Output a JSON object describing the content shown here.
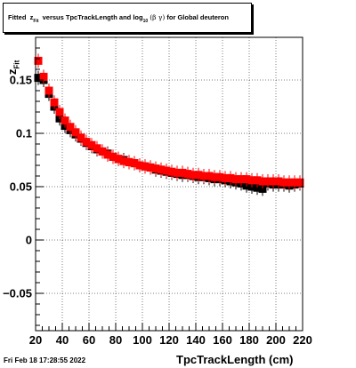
{
  "title": {
    "prefix": "Fitted",
    "z": "z",
    "z_sub": "Fit",
    "middle": "versus TpcTrackLength and log",
    "log_sub": "10",
    "greek": "(β γ)",
    "suffix": "for Global deuteron"
  },
  "timestamp": "Fri Feb 18 17:28:55 2022",
  "chart_data": {
    "type": "scatter",
    "xlabel": "TpcTrackLength (cm)",
    "ylabel": "z",
    "ylabel_sub": "Fit",
    "xlim": [
      20,
      220
    ],
    "ylim": [
      -0.085,
      0.19
    ],
    "xticks": [
      20,
      40,
      60,
      80,
      100,
      120,
      140,
      160,
      180,
      200,
      220
    ],
    "xtick_labels": [
      "20",
      "40",
      "60",
      "80",
      "100",
      "120",
      "140",
      "160",
      "180",
      "200",
      "220"
    ],
    "yticks": [
      -0.05,
      0,
      0.05,
      0.1,
      0.15
    ],
    "ytick_labels": [
      "−0.05",
      "0",
      "0.05",
      "0.1",
      "0.15"
    ],
    "grid": true,
    "series": [
      {
        "color": "#000000",
        "marker": "square",
        "points": [
          [
            22,
            0.152
          ],
          [
            26,
            0.15
          ],
          [
            30,
            0.137
          ],
          [
            34,
            0.125
          ],
          [
            38,
            0.114
          ],
          [
            42,
            0.107
          ],
          [
            46,
            0.103
          ],
          [
            50,
            0.099
          ],
          [
            54,
            0.095
          ],
          [
            58,
            0.091
          ],
          [
            62,
            0.088
          ],
          [
            66,
            0.085
          ],
          [
            70,
            0.083
          ],
          [
            74,
            0.081
          ],
          [
            78,
            0.078
          ],
          [
            82,
            0.076
          ],
          [
            86,
            0.075
          ],
          [
            90,
            0.073
          ],
          [
            94,
            0.072
          ],
          [
            98,
            0.07
          ],
          [
            102,
            0.069
          ],
          [
            106,
            0.068
          ],
          [
            110,
            0.066
          ],
          [
            114,
            0.065
          ],
          [
            118,
            0.064
          ],
          [
            122,
            0.063
          ],
          [
            126,
            0.062
          ],
          [
            130,
            0.061
          ],
          [
            134,
            0.061
          ],
          [
            138,
            0.06
          ],
          [
            142,
            0.059
          ],
          [
            146,
            0.059
          ],
          [
            150,
            0.058
          ],
          [
            154,
            0.057
          ],
          [
            158,
            0.057
          ],
          [
            162,
            0.056
          ],
          [
            166,
            0.055
          ],
          [
            170,
            0.054
          ],
          [
            174,
            0.053
          ],
          [
            178,
            0.051
          ],
          [
            182,
            0.05
          ],
          [
            186,
            0.049
          ],
          [
            190,
            0.048
          ],
          [
            194,
            0.053
          ],
          [
            198,
            0.052
          ],
          [
            202,
            0.052
          ],
          [
            206,
            0.052
          ],
          [
            210,
            0.051
          ],
          [
            214,
            0.052
          ],
          [
            218,
            0.053
          ]
        ]
      },
      {
        "color": "#ff0000",
        "marker": "square",
        "points": [
          [
            22,
            0.168
          ],
          [
            26,
            0.153
          ],
          [
            30,
            0.14
          ],
          [
            34,
            0.129
          ],
          [
            38,
            0.12
          ],
          [
            42,
            0.112
          ],
          [
            46,
            0.106
          ],
          [
            50,
            0.101
          ],
          [
            54,
            0.096
          ],
          [
            58,
            0.092
          ],
          [
            62,
            0.089
          ],
          [
            66,
            0.086
          ],
          [
            70,
            0.083
          ],
          [
            74,
            0.08
          ],
          [
            78,
            0.078
          ],
          [
            82,
            0.076
          ],
          [
            86,
            0.074
          ],
          [
            90,
            0.073
          ],
          [
            94,
            0.072
          ],
          [
            98,
            0.07
          ],
          [
            102,
            0.069
          ],
          [
            106,
            0.068
          ],
          [
            110,
            0.067
          ],
          [
            114,
            0.066
          ],
          [
            118,
            0.065
          ],
          [
            122,
            0.064
          ],
          [
            126,
            0.063
          ],
          [
            130,
            0.063
          ],
          [
            134,
            0.062
          ],
          [
            138,
            0.061
          ],
          [
            142,
            0.061
          ],
          [
            146,
            0.06
          ],
          [
            150,
            0.06
          ],
          [
            154,
            0.059
          ],
          [
            158,
            0.059
          ],
          [
            162,
            0.058
          ],
          [
            166,
            0.058
          ],
          [
            170,
            0.057
          ],
          [
            174,
            0.057
          ],
          [
            178,
            0.057
          ],
          [
            182,
            0.056
          ],
          [
            186,
            0.056
          ],
          [
            190,
            0.055
          ],
          [
            194,
            0.055
          ],
          [
            198,
            0.055
          ],
          [
            202,
            0.055
          ],
          [
            206,
            0.054
          ],
          [
            210,
            0.054
          ],
          [
            214,
            0.054
          ],
          [
            218,
            0.054
          ]
        ]
      }
    ]
  }
}
